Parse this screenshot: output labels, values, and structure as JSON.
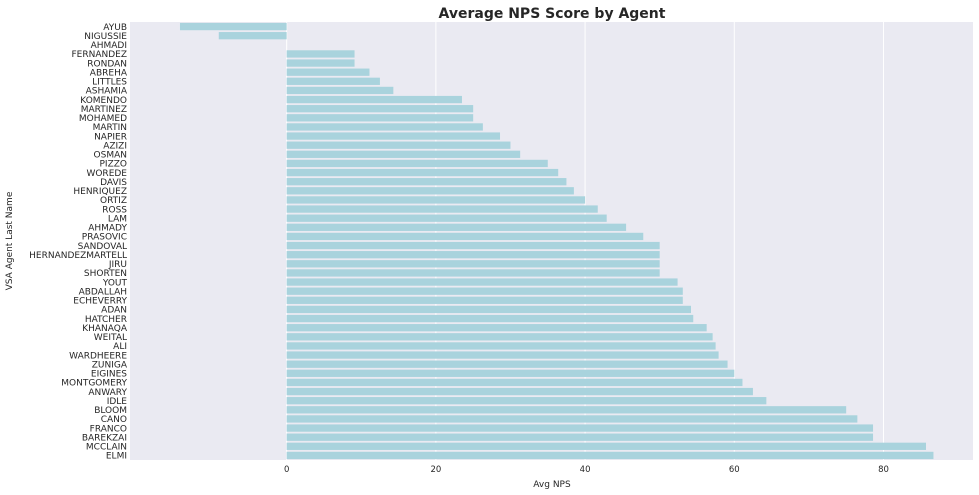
{
  "colors": {
    "plot_background": "#eaeaf2",
    "grid": "#ffffff",
    "bar": "#a9d3dd",
    "text": "#262626"
  },
  "chart_data": {
    "type": "bar",
    "orientation": "horizontal",
    "title": "Average NPS Score by Agent",
    "xlabel": "Avg NPS",
    "ylabel": "VSA Agent Last Name",
    "xlim": [
      -21,
      92
    ],
    "xticks": [
      0,
      20,
      40,
      60,
      80
    ],
    "grid": true,
    "categories": [
      "AYUB",
      "NIGUSSIE",
      "AHMADI",
      "FERNANDEZ",
      "RONDAN",
      "ABREHA",
      "LITTLES",
      "ASHAMIA",
      "KOMENDO",
      "MARTINEZ",
      "MOHAMED",
      "MARTIN",
      "NAPIER",
      "AZIZI",
      "OSMAN",
      "PIZZO",
      "WOREDE",
      "DAVIS",
      "HENRIQUEZ",
      "ORTIZ",
      "ROSS",
      "LAM",
      "AHMADY",
      "PRASOVIC",
      "SANDOVAL",
      "HERNANDEZMARTELL",
      "JIRU",
      "SHORTEN",
      "YOUT",
      "ABDALLAH",
      "ECHEVERRY",
      "ADAN",
      "HATCHER",
      "KHANAQA",
      "WEITAL",
      "ALI",
      "WARDHEERE",
      "ZUNIGA",
      "EIGINES",
      "MONTGOMERY",
      "ANWARY",
      "IDLE",
      "BLOOM",
      "CANO",
      "FRANCO",
      "BAREKZAI",
      "MCCLAIN",
      "ELMI"
    ],
    "values": [
      -14.3,
      -9.1,
      0,
      9.1,
      9.1,
      11.1,
      12.5,
      14.3,
      23.5,
      25.0,
      25.0,
      26.3,
      28.6,
      30.0,
      31.3,
      35.0,
      36.4,
      37.5,
      38.5,
      40.0,
      41.7,
      42.9,
      45.5,
      47.8,
      50.0,
      50.0,
      50.0,
      50.0,
      52.4,
      53.1,
      53.1,
      54.2,
      54.5,
      56.3,
      57.1,
      57.5,
      57.9,
      59.1,
      60.0,
      61.1,
      62.5,
      64.3,
      75.0,
      76.5,
      78.6,
      78.6,
      85.7,
      86.7
    ]
  }
}
